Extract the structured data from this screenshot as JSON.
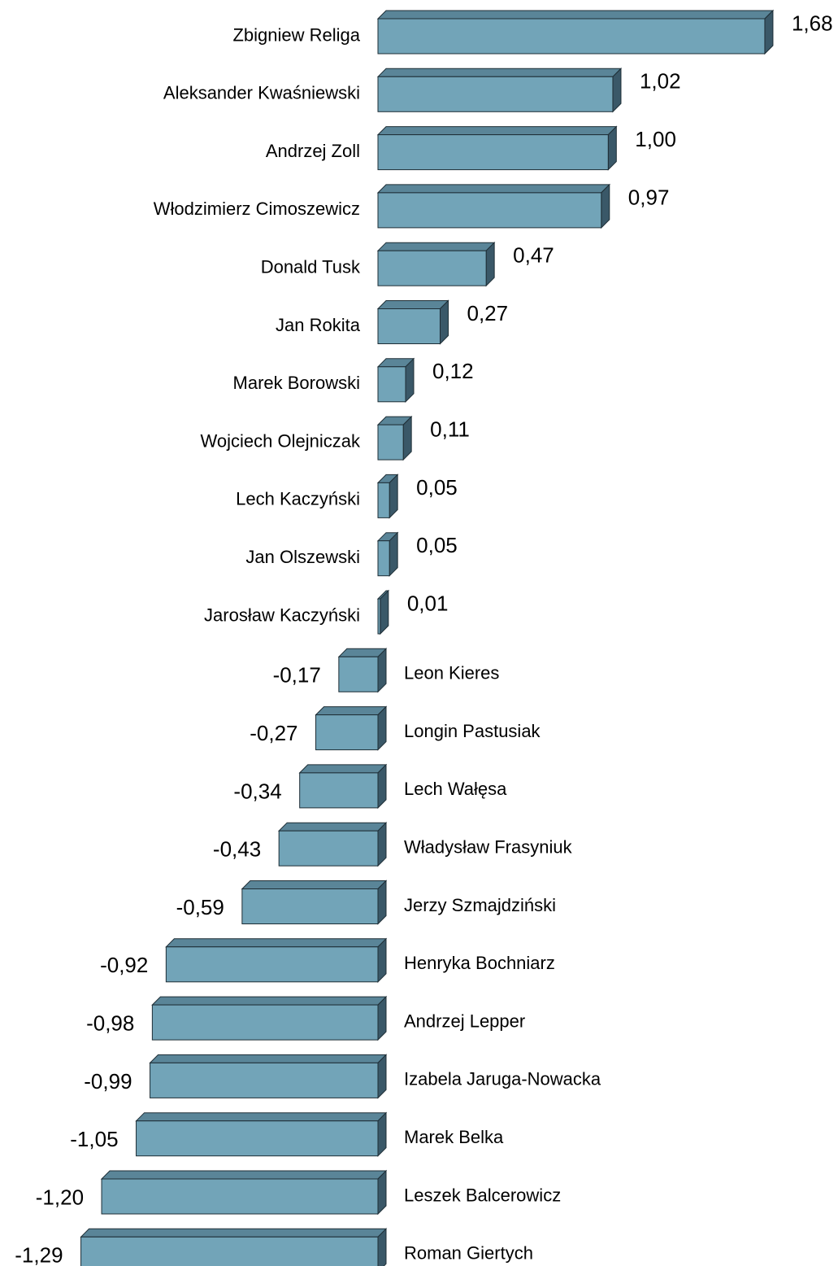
{
  "chart_data": {
    "type": "bar",
    "orientation": "horizontal",
    "style": "3d",
    "colors": {
      "bar_front": "#72A4B8",
      "bar_top": "#5A8598",
      "bar_side": "#3A5868",
      "outline": "#1E2E36"
    },
    "categories": [
      "Zbigniew Religa",
      "Aleksander Kwaśniewski",
      "Andrzej Zoll",
      "Włodzimierz Cimoszewicz",
      "Donald Tusk",
      "Jan Rokita",
      "Marek Borowski",
      "Wojciech Olejniczak",
      "Lech Kaczyński",
      "Jan Olszewski",
      "Jarosław Kaczyński",
      "Leon Kieres",
      "Longin Pastusiak",
      "Lech Wałęsa",
      "Władysław Frasyniuk",
      "Jerzy Szmajdziński",
      "Henryka Bochniarz",
      "Andrzej Lepper",
      "Izabela Jaruga-Nowacka",
      "Marek Belka",
      "Leszek Balcerowicz",
      "Roman Giertych"
    ],
    "values": [
      1.68,
      1.02,
      1.0,
      0.97,
      0.47,
      0.27,
      0.12,
      0.11,
      0.05,
      0.05,
      0.01,
      -0.17,
      -0.27,
      -0.34,
      -0.43,
      -0.59,
      -0.92,
      -0.98,
      -0.99,
      -1.05,
      -1.2,
      -1.29
    ],
    "data_labels": [
      "1,68",
      "1,02",
      "1,00",
      "0,97",
      "0,47",
      "0,27",
      "0,12",
      "0,11",
      "0,05",
      "0,05",
      "0,01",
      "-0,17",
      "-0,27",
      "-0,34",
      "-0,43",
      "-0,59",
      "-0,92",
      "-0,98",
      "-0,99",
      "-1,05",
      "-1,20",
      "-1,29"
    ],
    "legend": "none",
    "grid": false
  }
}
